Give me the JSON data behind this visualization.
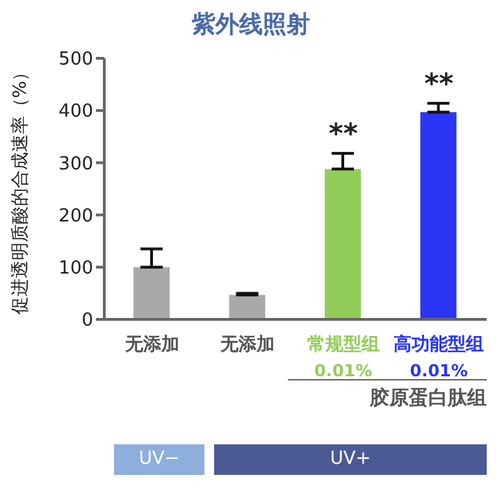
{
  "chart_data": {
    "type": "bar",
    "title": "紫外线照射",
    "ylabel": "促进透明质酸的合成速率（%）",
    "categories": [
      "无添加",
      "无添加",
      "常规型组\n0.01%",
      "高功能型组\n0.01%"
    ],
    "values": [
      100,
      47,
      288,
      397
    ],
    "colors": [
      "#a9a9a9",
      "#a9a9a9",
      "#92cd5a",
      "#2a35f5"
    ],
    "errors": [
      [
        100,
        135
      ],
      [
        47,
        50
      ],
      [
        288,
        318
      ],
      [
        397,
        414
      ]
    ],
    "ylim": [
      0,
      500
    ],
    "yticks": [
      0,
      100,
      200,
      300,
      400,
      500
    ],
    "grid": false,
    "legend": false,
    "annotations": [
      {
        "text": "**",
        "x": "常规型组\n0.01%",
        "y": 318
      },
      {
        "text": "**",
        "x": "高功能型组\n0.01%",
        "y": 414
      },
      "胶原蛋白肽组",
      "UV−",
      "UV+"
    ]
  }
}
